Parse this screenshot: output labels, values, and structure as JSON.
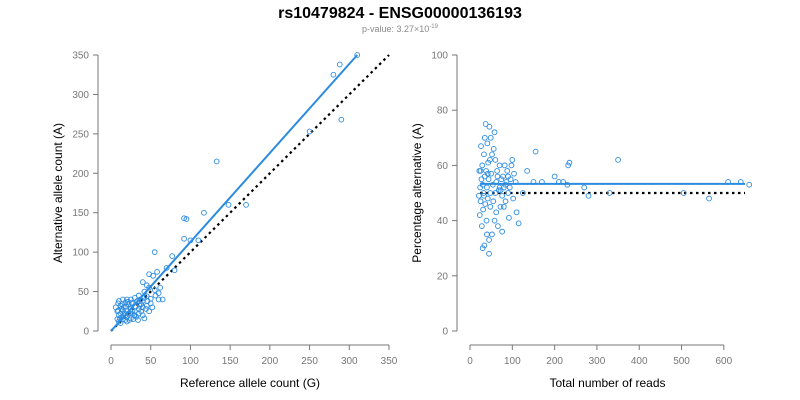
{
  "title": "rs10479824 - ENSG00000136193",
  "subtitle": {
    "prefix": "p-value: 3.27×10",
    "exponent": "-19"
  },
  "colors": {
    "points": "#2b8be0",
    "fit_line": "#2b8be0",
    "reference_line": "#000000",
    "axis": "#777777",
    "text": "#000000"
  },
  "chart_data": [
    {
      "type": "scatter",
      "xlabel": "Reference allele count (G)",
      "ylabel": "Alternative allele count (A)",
      "xlim": [
        0,
        350
      ],
      "ylim": [
        0,
        350
      ],
      "xticks": [
        0,
        50,
        100,
        150,
        200,
        250,
        300,
        350
      ],
      "yticks": [
        0,
        50,
        100,
        150,
        200,
        250,
        300,
        350
      ],
      "grid": false,
      "fit_line": {
        "style": "solid",
        "from": [
          0,
          0
        ],
        "to": [
          310,
          350
        ]
      },
      "reference_line": {
        "style": "dotted",
        "from": [
          0,
          0
        ],
        "to": [
          350,
          350
        ]
      },
      "points": [
        [
          310,
          350
        ],
        [
          288,
          338
        ],
        [
          280,
          325
        ],
        [
          290,
          268
        ],
        [
          250,
          253
        ],
        [
          133,
          215
        ],
        [
          148,
          160
        ],
        [
          170,
          160
        ],
        [
          117,
          150
        ],
        [
          92,
          143
        ],
        [
          95,
          142
        ],
        [
          92,
          117
        ],
        [
          100,
          115
        ],
        [
          110,
          115
        ],
        [
          77,
          95
        ],
        [
          55,
          100
        ],
        [
          70,
          80
        ],
        [
          80,
          77
        ],
        [
          58,
          75
        ],
        [
          48,
          72
        ],
        [
          53,
          70
        ],
        [
          40,
          62
        ],
        [
          45,
          58
        ],
        [
          48,
          55
        ],
        [
          55,
          52
        ],
        [
          60,
          48
        ],
        [
          42,
          50
        ],
        [
          45,
          44
        ],
        [
          50,
          41
        ],
        [
          60,
          40
        ],
        [
          65,
          40
        ],
        [
          35,
          45
        ],
        [
          30,
          42
        ],
        [
          25,
          40
        ],
        [
          20,
          40
        ],
        [
          15,
          40
        ],
        [
          10,
          38
        ],
        [
          18,
          36
        ],
        [
          22,
          34
        ],
        [
          28,
          35
        ],
        [
          33,
          38
        ],
        [
          38,
          34
        ],
        [
          40,
          30
        ],
        [
          45,
          32
        ],
        [
          35,
          28
        ],
        [
          30,
          25
        ],
        [
          25,
          28
        ],
        [
          20,
          25
        ],
        [
          15,
          26
        ],
        [
          12,
          22
        ],
        [
          10,
          20
        ],
        [
          14,
          18
        ],
        [
          18,
          20
        ],
        [
          22,
          22
        ],
        [
          26,
          22
        ],
        [
          30,
          20
        ],
        [
          8,
          15
        ],
        [
          10,
          12
        ],
        [
          12,
          10
        ],
        [
          15,
          15
        ],
        [
          18,
          14
        ],
        [
          20,
          12
        ],
        [
          25,
          16
        ],
        [
          28,
          15
        ],
        [
          32,
          18
        ],
        [
          35,
          22
        ],
        [
          40,
          20
        ],
        [
          42,
          16
        ],
        [
          48,
          25
        ],
        [
          52,
          30
        ],
        [
          8,
          25
        ],
        [
          6,
          30
        ],
        [
          9,
          35
        ],
        [
          12,
          32
        ],
        [
          16,
          30
        ],
        [
          24,
          30
        ],
        [
          27,
          26
        ],
        [
          36,
          32
        ],
        [
          40,
          38
        ],
        [
          44,
          28
        ],
        [
          20,
          18
        ],
        [
          13,
          28
        ],
        [
          17,
          22
        ],
        [
          11,
          16
        ],
        [
          23,
          14
        ],
        [
          29,
          20
        ],
        [
          34,
          14
        ],
        [
          38,
          25
        ],
        [
          46,
          38
        ],
        [
          50,
          35
        ],
        [
          56,
          45
        ],
        [
          62,
          55
        ],
        [
          14,
          34
        ],
        [
          21,
          37
        ],
        [
          31,
          31
        ],
        [
          9,
          26
        ],
        [
          19,
          31
        ],
        [
          26,
          36
        ],
        [
          37,
          40
        ],
        [
          42,
          42
        ]
      ]
    },
    {
      "type": "scatter",
      "xlabel": "Total number of reads",
      "ylabel": "Percentage alternative (A)",
      "xlim": [
        0,
        650
      ],
      "ylim": [
        0,
        100
      ],
      "xticks": [
        0,
        100,
        200,
        300,
        400,
        500,
        600
      ],
      "yticks": [
        0,
        20,
        40,
        60,
        80,
        100
      ],
      "grid": false,
      "fit_line": {
        "style": "solid",
        "y": 53.3
      },
      "reference_line": {
        "style": "dotted",
        "y": 50
      },
      "points": [
        [
          660,
          53
        ],
        [
          640,
          54
        ],
        [
          610,
          54
        ],
        [
          565,
          48
        ],
        [
          505,
          50
        ],
        [
          350,
          62
        ],
        [
          330,
          50
        ],
        [
          280,
          49
        ],
        [
          270,
          52
        ],
        [
          235,
          61
        ],
        [
          232,
          60
        ],
        [
          230,
          53
        ],
        [
          220,
          54
        ],
        [
          210,
          54
        ],
        [
          200,
          56
        ],
        [
          170,
          54
        ],
        [
          155,
          65
        ],
        [
          150,
          54
        ],
        [
          135,
          58
        ],
        [
          125,
          50
        ],
        [
          115,
          39
        ],
        [
          110,
          43
        ],
        [
          108,
          54
        ],
        [
          104,
          57
        ],
        [
          102,
          48
        ],
        [
          100,
          62
        ],
        [
          98,
          60
        ],
        [
          96,
          55
        ],
        [
          94,
          52
        ],
        [
          92,
          41
        ],
        [
          90,
          50
        ],
        [
          88,
          58
        ],
        [
          86,
          54
        ],
        [
          84,
          47
        ],
        [
          82,
          60
        ],
        [
          80,
          52
        ],
        [
          78,
          56
        ],
        [
          76,
          49
        ],
        [
          74,
          55
        ],
        [
          72,
          45
        ],
        [
          70,
          52
        ],
        [
          68,
          51
        ],
        [
          66,
          38
        ],
        [
          64,
          58
        ],
        [
          62,
          54
        ],
        [
          60,
          50
        ],
        [
          58,
          40
        ],
        [
          56,
          66
        ],
        [
          54,
          53
        ],
        [
          52,
          35
        ],
        [
          50,
          57
        ],
        [
          49,
          70
        ],
        [
          48,
          45
        ],
        [
          47,
          62
        ],
        [
          46,
          74
        ],
        [
          45,
          33
        ],
        [
          44,
          55
        ],
        [
          43,
          61
        ],
        [
          42,
          48
        ],
        [
          41,
          68
        ],
        [
          40,
          52
        ],
        [
          39,
          40
        ],
        [
          38,
          58
        ],
        [
          37,
          75
        ],
        [
          36,
          46
        ],
        [
          35,
          56
        ],
        [
          34,
          31
        ],
        [
          33,
          64
        ],
        [
          32,
          50
        ],
        [
          31,
          44
        ],
        [
          30,
          53
        ],
        [
          29,
          60
        ],
        [
          28,
          38
        ],
        [
          27,
          55
        ],
        [
          26,
          67
        ],
        [
          25,
          47
        ],
        [
          24,
          52
        ],
        [
          23,
          42
        ],
        [
          22,
          58
        ],
        [
          21,
          49
        ],
        [
          58,
          72
        ],
        [
          52,
          64
        ],
        [
          45,
          28
        ],
        [
          62,
          43
        ],
        [
          70,
          60
        ],
        [
          76,
          36
        ],
        [
          84,
          53
        ],
        [
          40,
          35
        ],
        [
          35,
          70
        ],
        [
          30,
          30
        ],
        [
          48,
          50
        ],
        [
          55,
          47
        ],
        [
          65,
          56
        ],
        [
          72,
          51
        ],
        [
          60,
          62
        ],
        [
          80,
          45
        ],
        [
          90,
          56
        ],
        [
          25,
          58
        ],
        [
          33,
          49
        ],
        [
          42,
          57
        ]
      ]
    }
  ]
}
